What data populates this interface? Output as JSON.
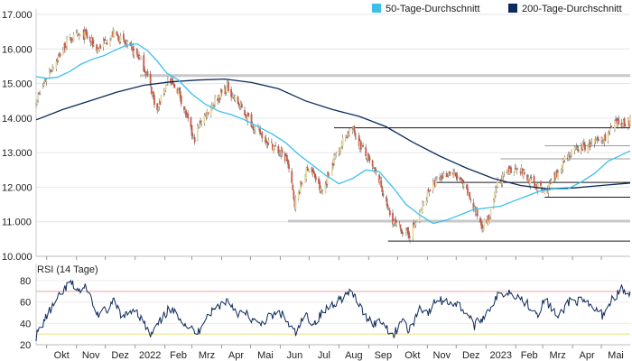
{
  "chart_data": [
    {
      "type": "candlestick",
      "x_start": "2021-09-20",
      "x_end": "2023-05-31",
      "ylim": [
        10000,
        17000
      ],
      "y_ticks": [
        "10.000",
        "11.000",
        "12.000",
        "13.000",
        "14.000",
        "15.000",
        "16.000",
        "17.000"
      ],
      "x_ticks": [
        "Okt",
        "Nov",
        "Dez",
        "2022",
        "Feb",
        "Mrz",
        "Apr",
        "Mai",
        "Jun",
        "Jul",
        "Aug",
        "Sep",
        "Okt",
        "Nov",
        "Dez",
        "2023",
        "Feb",
        "Mrz",
        "Apr",
        "Mai"
      ],
      "legend": [
        {
          "name": "50-Tage-Durchschnitt",
          "color": "#3cc0ea"
        },
        {
          "name": "200-Tage-Durchschnitt",
          "color": "#0d2a5c"
        }
      ],
      "close_path": [
        [
          "2021-09-20",
          14500
        ],
        [
          "2021-10-05",
          15400
        ],
        [
          "2021-10-25",
          16300
        ],
        [
          "2021-11-10",
          16400
        ],
        [
          "2021-11-23",
          16000
        ],
        [
          "2021-12-10",
          16450
        ],
        [
          "2021-12-31",
          15900
        ],
        [
          "2022-01-06",
          15750
        ],
        [
          "2022-01-14",
          15200
        ],
        [
          "2022-01-24",
          14200
        ],
        [
          "2022-02-03",
          15100
        ],
        [
          "2022-02-15",
          14800
        ],
        [
          "2022-03-03",
          13350
        ],
        [
          "2022-03-10",
          13900
        ],
        [
          "2022-03-25",
          14500
        ],
        [
          "2022-04-07",
          14900
        ],
        [
          "2022-04-21",
          14300
        ],
        [
          "2022-05-06",
          13700
        ],
        [
          "2022-05-20",
          13300
        ],
        [
          "2022-06-08",
          12800
        ],
        [
          "2022-06-16",
          11550
        ],
        [
          "2022-06-30",
          12600
        ],
        [
          "2022-07-07",
          12300
        ],
        [
          "2022-07-14",
          11800
        ],
        [
          "2022-07-28",
          12900
        ],
        [
          "2022-08-10",
          13600
        ],
        [
          "2022-08-16",
          13650
        ],
        [
          "2022-08-29",
          12900
        ],
        [
          "2022-09-12",
          12200
        ],
        [
          "2022-09-23",
          11200
        ],
        [
          "2022-09-29",
          10900
        ],
        [
          "2022-10-13",
          10600
        ],
        [
          "2022-10-24",
          11200
        ],
        [
          "2022-11-02",
          11900
        ],
        [
          "2022-11-16",
          12300
        ],
        [
          "2022-11-24",
          12450
        ],
        [
          "2022-12-05",
          12200
        ],
        [
          "2022-12-15",
          11700
        ],
        [
          "2022-12-22",
          11250
        ],
        [
          "2022-12-28",
          10900
        ],
        [
          "2023-01-05",
          11100
        ],
        [
          "2023-01-13",
          12100
        ],
        [
          "2023-01-24",
          12450
        ],
        [
          "2023-02-03",
          12600
        ],
        [
          "2023-02-15",
          12200
        ],
        [
          "2023-03-03",
          11850
        ],
        [
          "2023-03-15",
          12300
        ],
        [
          "2023-03-24",
          12850
        ],
        [
          "2023-04-06",
          13100
        ],
        [
          "2023-04-17",
          13200
        ],
        [
          "2023-05-03",
          13400
        ],
        [
          "2023-05-15",
          13800
        ],
        [
          "2023-05-31",
          13900
        ]
      ],
      "sma50": [
        [
          "2021-09-20",
          15200
        ],
        [
          "2021-10-01",
          15150
        ],
        [
          "2021-10-12",
          15180
        ],
        [
          "2021-10-25",
          15350
        ],
        [
          "2021-11-05",
          15550
        ],
        [
          "2021-11-17",
          15700
        ],
        [
          "2021-11-29",
          15800
        ],
        [
          "2021-12-10",
          15950
        ],
        [
          "2021-12-22",
          16100
        ],
        [
          "2022-01-03",
          16150
        ],
        [
          "2022-01-14",
          15950
        ],
        [
          "2022-01-24",
          15650
        ],
        [
          "2022-02-03",
          15300
        ],
        [
          "2022-02-15",
          15100
        ],
        [
          "2022-03-01",
          14700
        ],
        [
          "2022-03-15",
          14400
        ],
        [
          "2022-03-29",
          14200
        ],
        [
          "2022-04-11",
          14100
        ],
        [
          "2022-04-25",
          13950
        ],
        [
          "2022-05-09",
          13750
        ],
        [
          "2022-05-23",
          13550
        ],
        [
          "2022-06-06",
          13300
        ],
        [
          "2022-06-20",
          12950
        ],
        [
          "2022-07-04",
          12650
        ],
        [
          "2022-07-18",
          12350
        ],
        [
          "2022-08-01",
          12100
        ],
        [
          "2022-08-15",
          12250
        ],
        [
          "2022-08-29",
          12500
        ],
        [
          "2022-09-12",
          12450
        ],
        [
          "2022-09-26",
          12000
        ],
        [
          "2022-10-10",
          11500
        ],
        [
          "2022-10-24",
          11200
        ],
        [
          "2022-11-07",
          10950
        ],
        [
          "2022-11-21",
          11050
        ],
        [
          "2022-12-05",
          11200
        ],
        [
          "2022-12-19",
          11350
        ],
        [
          "2023-01-02",
          11400
        ],
        [
          "2023-01-16",
          11450
        ],
        [
          "2023-01-30",
          11600
        ],
        [
          "2023-02-13",
          11750
        ],
        [
          "2023-02-27",
          11900
        ],
        [
          "2023-03-13",
          11950
        ],
        [
          "2023-03-27",
          11950
        ],
        [
          "2023-04-10",
          12150
        ],
        [
          "2023-04-24",
          12400
        ],
        [
          "2023-05-08",
          12750
        ],
        [
          "2023-05-31",
          13050
        ]
      ],
      "sma200": [
        [
          "2021-09-20",
          13950
        ],
        [
          "2021-10-18",
          14250
        ],
        [
          "2021-11-15",
          14500
        ],
        [
          "2021-12-13",
          14750
        ],
        [
          "2022-01-10",
          14950
        ],
        [
          "2022-02-07",
          15050
        ],
        [
          "2022-03-07",
          15100
        ],
        [
          "2022-04-04",
          15130
        ],
        [
          "2022-05-02",
          15030
        ],
        [
          "2022-05-30",
          14850
        ],
        [
          "2022-06-27",
          14500
        ],
        [
          "2022-07-25",
          14250
        ],
        [
          "2022-08-22",
          14050
        ],
        [
          "2022-09-19",
          13750
        ],
        [
          "2022-10-17",
          13300
        ],
        [
          "2022-11-14",
          12900
        ],
        [
          "2022-12-12",
          12550
        ],
        [
          "2023-01-09",
          12250
        ],
        [
          "2023-02-06",
          12050
        ],
        [
          "2023-03-06",
          11950
        ],
        [
          "2023-04-03",
          11980
        ],
        [
          "2023-05-01",
          12050
        ],
        [
          "2023-05-31",
          12120
        ]
      ],
      "reference_lines": [
        {
          "y": 15230,
          "from": "2022-01-06",
          "to": "2023-05-31",
          "color": "#c8c8c8"
        },
        {
          "y": 13720,
          "from": "2022-07-27",
          "to": "2023-05-31",
          "color": "#1a1a1a"
        },
        {
          "y": 13200,
          "from": "2023-03-03",
          "to": "2023-05-31",
          "color": "#9a9a9a"
        },
        {
          "y": 12820,
          "from": "2023-01-16",
          "to": "2023-05-31",
          "color": "#9a9a9a"
        },
        {
          "y": 12140,
          "from": "2022-11-07",
          "to": "2023-05-31",
          "color": "#1a1a1a"
        },
        {
          "y": 11710,
          "from": "2023-03-03",
          "to": "2023-05-31",
          "color": "#1a1a1a"
        },
        {
          "y": 11020,
          "from": "2022-06-09",
          "to": "2023-05-31",
          "color": "#c8c8c8"
        },
        {
          "y": 10440,
          "from": "2022-09-21",
          "to": "2023-05-31",
          "color": "#1a1a1a"
        }
      ],
      "candle_colors": {
        "up": "#e9d9a3",
        "down": "#c85a4a",
        "wick": "#5a5a5a"
      }
    },
    {
      "type": "line",
      "title": "RSI (14 Tage)",
      "ylim": [
        20,
        85
      ],
      "y_ticks": [
        "20",
        "40",
        "60",
        "80"
      ],
      "thresholds": [
        {
          "y": 70,
          "color": "#f2a2a2"
        },
        {
          "y": 30,
          "color": "#e6e27a"
        }
      ],
      "series_color": "#0d2a5c",
      "rsi_path": [
        [
          "2021-09-20",
          28
        ],
        [
          "2021-10-01",
          47
        ],
        [
          "2021-10-15",
          66
        ],
        [
          "2021-10-25",
          78
        ],
        [
          "2021-11-05",
          70
        ],
        [
          "2021-11-12",
          74
        ],
        [
          "2021-11-22",
          48
        ],
        [
          "2021-12-02",
          52
        ],
        [
          "2021-12-10",
          60
        ],
        [
          "2021-12-20",
          45
        ],
        [
          "2021-12-31",
          55
        ],
        [
          "2022-01-10",
          40
        ],
        [
          "2022-01-17",
          28
        ],
        [
          "2022-01-26",
          40
        ],
        [
          "2022-02-04",
          52
        ],
        [
          "2022-02-15",
          48
        ],
        [
          "2022-02-24",
          38
        ],
        [
          "2022-03-07",
          30
        ],
        [
          "2022-03-14",
          45
        ],
        [
          "2022-03-28",
          56
        ],
        [
          "2022-04-07",
          62
        ],
        [
          "2022-04-18",
          50
        ],
        [
          "2022-04-28",
          48
        ],
        [
          "2022-05-09",
          38
        ],
        [
          "2022-05-19",
          45
        ],
        [
          "2022-06-01",
          50
        ],
        [
          "2022-06-13",
          35
        ],
        [
          "2022-06-17",
          30
        ],
        [
          "2022-06-27",
          48
        ],
        [
          "2022-07-06",
          40
        ],
        [
          "2022-07-15",
          50
        ],
        [
          "2022-07-28",
          60
        ],
        [
          "2022-08-11",
          68
        ],
        [
          "2022-08-18",
          65
        ],
        [
          "2022-08-26",
          50
        ],
        [
          "2022-09-06",
          40
        ],
        [
          "2022-09-15",
          42
        ],
        [
          "2022-09-27",
          28
        ],
        [
          "2022-10-05",
          45
        ],
        [
          "2022-10-13",
          32
        ],
        [
          "2022-10-24",
          55
        ],
        [
          "2022-11-03",
          50
        ],
        [
          "2022-11-10",
          62
        ],
        [
          "2022-11-25",
          60
        ],
        [
          "2022-12-02",
          58
        ],
        [
          "2022-12-12",
          50
        ],
        [
          "2022-12-20",
          38
        ],
        [
          "2022-12-28",
          45
        ],
        [
          "2023-01-05",
          55
        ],
        [
          "2023-01-13",
          65
        ],
        [
          "2023-01-24",
          70
        ],
        [
          "2023-02-03",
          66
        ],
        [
          "2023-02-13",
          58
        ],
        [
          "2023-02-24",
          50
        ],
        [
          "2023-03-03",
          62
        ],
        [
          "2023-03-10",
          55
        ],
        [
          "2023-03-17",
          44
        ],
        [
          "2023-03-29",
          62
        ],
        [
          "2023-04-11",
          60
        ],
        [
          "2023-04-21",
          55
        ],
        [
          "2023-05-02",
          48
        ],
        [
          "2023-05-12",
          62
        ],
        [
          "2023-05-22",
          72
        ],
        [
          "2023-05-31",
          66
        ]
      ]
    }
  ]
}
